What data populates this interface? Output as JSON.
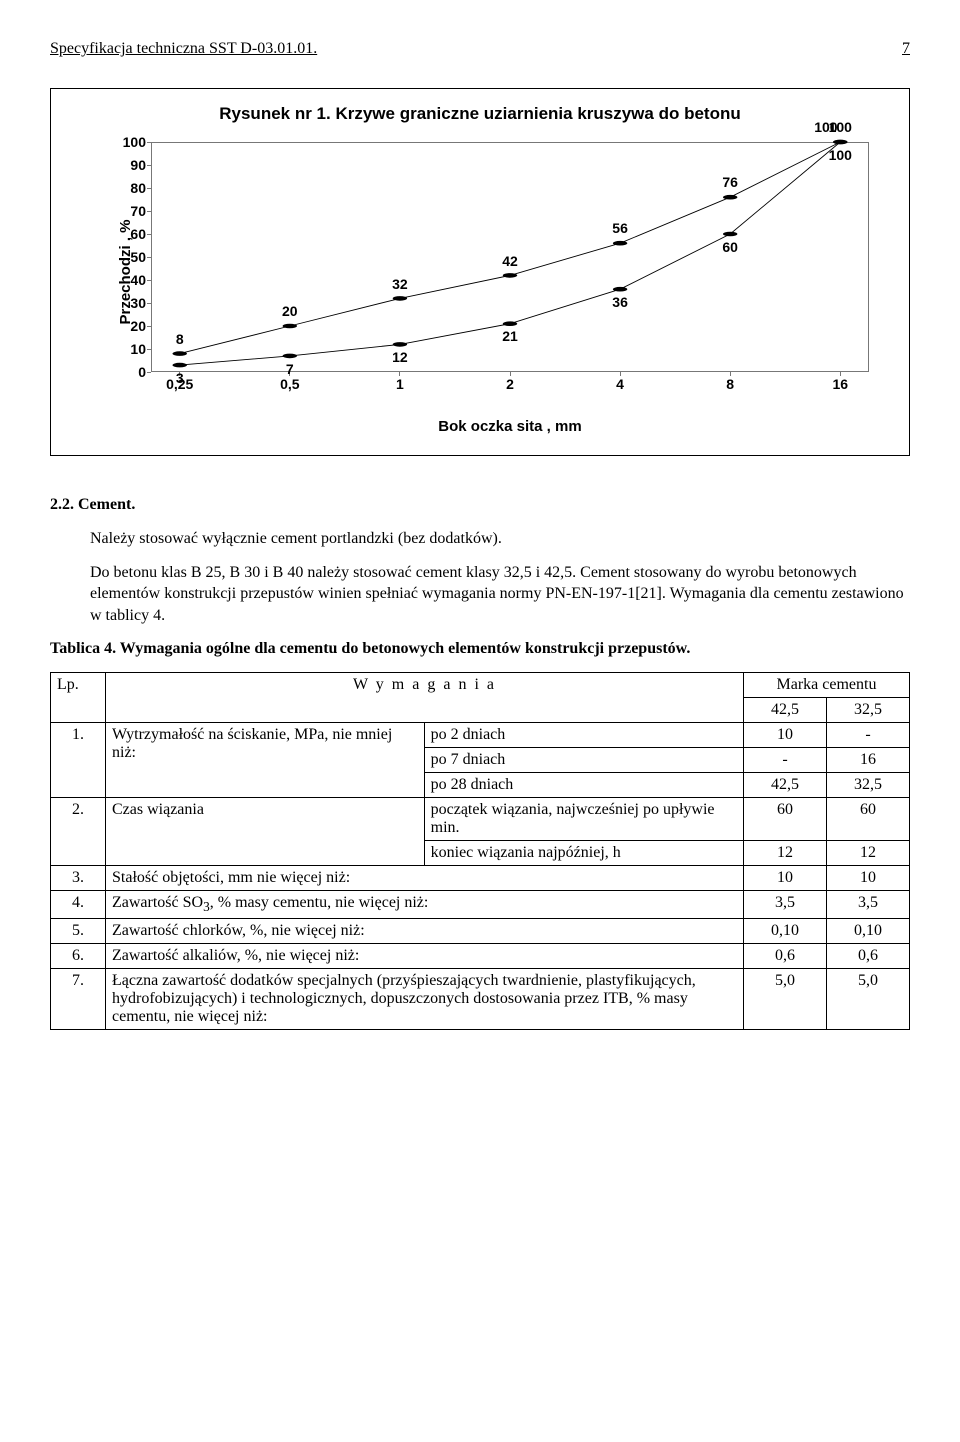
{
  "header": {
    "left": "Specyfikacja techniczna SST D-03.01.01.",
    "page": "7"
  },
  "chart": {
    "title": "Rysunek nr 1. Krzywe graniczne uziarnienia kruszywa do betonu",
    "ylabel": "Przechodzi ,  %",
    "xlabel": "Bok oczka sita ,  mm",
    "yticks": [
      0,
      10,
      20,
      30,
      40,
      50,
      60,
      70,
      80,
      90,
      100
    ],
    "xticks": [
      "0,25",
      "0,5",
      "1",
      "2",
      "4",
      "8",
      "16"
    ],
    "upper": {
      "y": [
        8,
        20,
        32,
        42,
        56,
        76,
        100
      ],
      "labels": [
        "8",
        "20",
        "32",
        "42",
        "56",
        "76",
        "100"
      ]
    },
    "lower": {
      "y": [
        3,
        7,
        12,
        21,
        36,
        60,
        100
      ],
      "labels": [
        "3",
        "7",
        "12",
        "21",
        "36",
        "60",
        "100"
      ]
    },
    "hundred_label": "100"
  },
  "sec22": {
    "heading": "2.2. Cement.",
    "p1": "Należy stosować wyłącznie cement portlandzki (bez dodatków).",
    "p2": "Do betonu klas B 25, B 30 i B 40 należy stosować cement klasy 32,5 i 42,5. Cement stosowany do wyrobu betonowych elementów konstrukcji przepustów winien spełniać wymagania normy PN-EN-197-1[21]. Wymagania dla cementu zestawiono w tablicy 4."
  },
  "table4": {
    "caption": "Tablica 4. Wymagania ogólne dla cementu do betonowych elementów konstrukcji przepustów.",
    "head": {
      "lp": "Lp.",
      "wym": "W y m a g a n i a",
      "marka": "Marka cementu",
      "m425": "42,5",
      "m325": "32,5"
    },
    "r1": {
      "n": "1.",
      "a": "Wytrzymałość na ściskanie, MPa, nie mniej niż:",
      "b1": "po 2 dniach",
      "v1a": "10",
      "v1b": "-",
      "b2": "po 7 dniach",
      "v2a": "-",
      "v2b": "16",
      "b3": "po 28 dniach",
      "v3a": "42,5",
      "v3b": "32,5"
    },
    "r2": {
      "n": "2.",
      "a": "Czas wiązania",
      "b1": "początek wiązania, najwcześniej po upływie min.",
      "v1a": "60",
      "v1b": "60",
      "b2": "koniec wiązania najpóźniej, h",
      "v2a": "12",
      "v2b": "12"
    },
    "r3": {
      "n": "3.",
      "a": "Stałość objętości, mm nie więcej niż:",
      "va": "10",
      "vb": "10"
    },
    "r4": {
      "n": "4.",
      "a": "Zawartość SO3, % masy cementu, nie więcej niż:",
      "va": "3,5",
      "vb": "3,5"
    },
    "r5": {
      "n": "5.",
      "a": "Zawartość chlorków, %, nie więcej niż:",
      "va": "0,10",
      "vb": "0,10"
    },
    "r6": {
      "n": "6.",
      "a": "Zawartość alkaliów, %, nie więcej niż:",
      "va": "0,6",
      "vb": "0,6"
    },
    "r7": {
      "n": "7.",
      "a": "Łączna zawartość dodatków specjalnych (przyśpieszających twardnienie, plastyfikujących, hydrofobizujących) i technologicznych, dopuszczonych dostosowania przez ITB, % masy cementu, nie więcej niż:",
      "va": "5,0",
      "vb": "5,0"
    }
  }
}
